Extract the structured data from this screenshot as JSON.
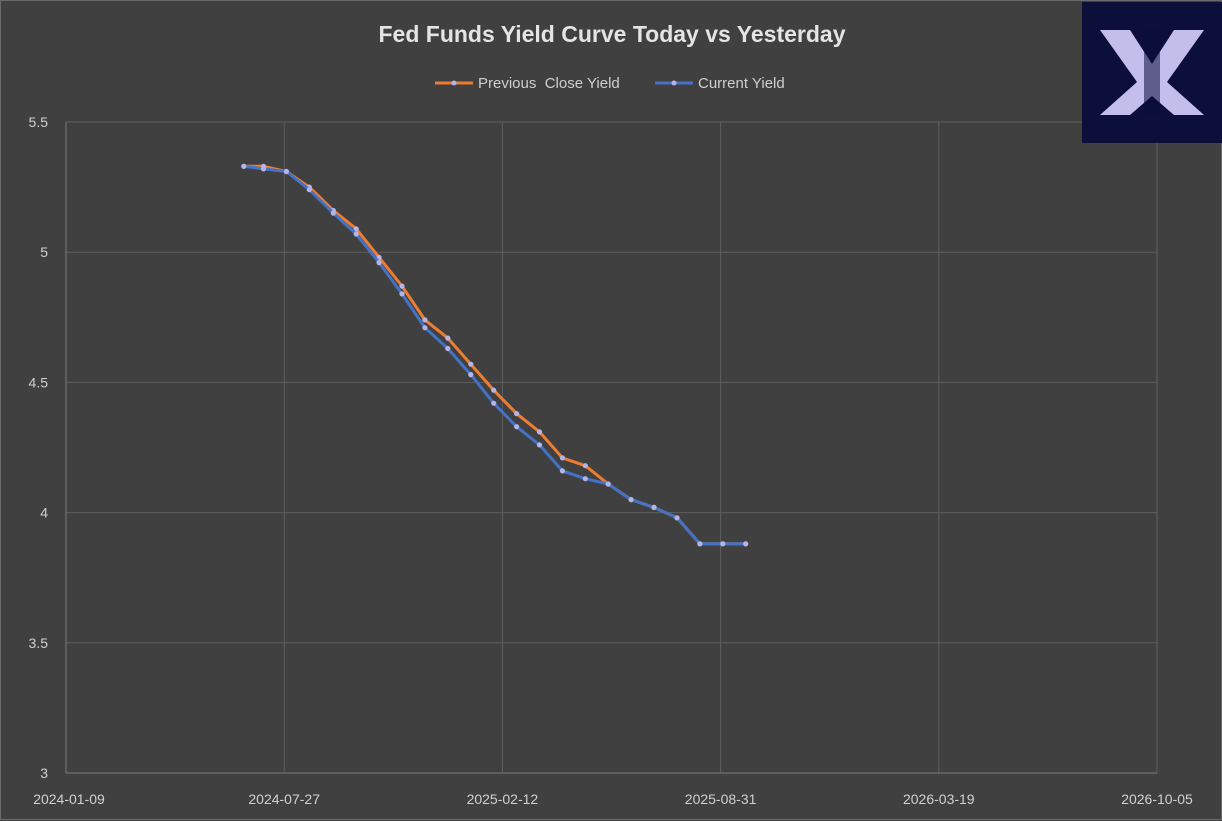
{
  "colors": {
    "background": "#404040",
    "gridline": "#5e5e5e",
    "previous_close": "#ed7d31",
    "current": "#4472c4",
    "marker": "#b4b4e6",
    "logo_bg": "#0d0f3b",
    "logo_fg": "#cdc8f3"
  },
  "logo": {
    "icon": "x-mark-logo-icon"
  },
  "chart_data": {
    "type": "line",
    "title": "Fed Funds Yield Curve Today vs Yesterday",
    "xlabel": "",
    "ylabel": "",
    "x_axis_type": "date",
    "xlim": [
      "2024-01-09",
      "2026-10-05"
    ],
    "ylim": [
      3,
      5.5
    ],
    "x_ticks": [
      "2024-01-09",
      "2024-07-27",
      "2025-02-12",
      "2025-08-31",
      "2026-03-19",
      "2026-10-05"
    ],
    "y_ticks": [
      3,
      3.5,
      4,
      4.5,
      5,
      5.5
    ],
    "y_tick_labels": [
      "3",
      "3.5",
      "4",
      "4.5",
      "5",
      "5.5"
    ],
    "grid": true,
    "legend_position": "top-center",
    "x": [
      "2024-06-20",
      "2024-07-08",
      "2024-07-29",
      "2024-08-19",
      "2024-09-10",
      "2024-10-01",
      "2024-10-22",
      "2024-11-12",
      "2024-12-03",
      "2024-12-24",
      "2025-01-14",
      "2025-02-04",
      "2025-02-25",
      "2025-03-18",
      "2025-04-08",
      "2025-04-29",
      "2025-05-20",
      "2025-06-10",
      "2025-07-01",
      "2025-07-22",
      "2025-08-12",
      "2025-09-02",
      "2025-09-23",
      "2025-10-14",
      "2025-11-04",
      "2025-11-25",
      "2025-12-16",
      "2026-01-06",
      "2026-01-27",
      "2026-02-17",
      "2026-03-10",
      "2026-03-31"
    ],
    "series": [
      {
        "name": "Previous  Close Yield",
        "color": "#ed7d31",
        "values": [
          5.33,
          5.33,
          5.31,
          5.25,
          5.16,
          5.09,
          4.98,
          4.87,
          4.74,
          4.67,
          4.57,
          4.47,
          4.38,
          4.31,
          4.21,
          4.18,
          4.11,
          4.05,
          4.02,
          3.98,
          3.88,
          3.88,
          3.88,
          null,
          null,
          null,
          null,
          null,
          null,
          null,
          null,
          null
        ]
      },
      {
        "name": "Current Yield",
        "color": "#4472c4",
        "values": [
          5.33,
          5.32,
          5.31,
          5.24,
          5.15,
          5.07,
          4.96,
          4.84,
          4.71,
          4.63,
          4.53,
          4.42,
          4.33,
          4.26,
          4.16,
          4.13,
          4.11,
          4.05,
          4.02,
          3.98,
          3.88,
          3.88,
          3.88,
          null,
          null,
          null,
          null,
          null,
          null,
          null,
          null,
          null
        ]
      }
    ]
  }
}
